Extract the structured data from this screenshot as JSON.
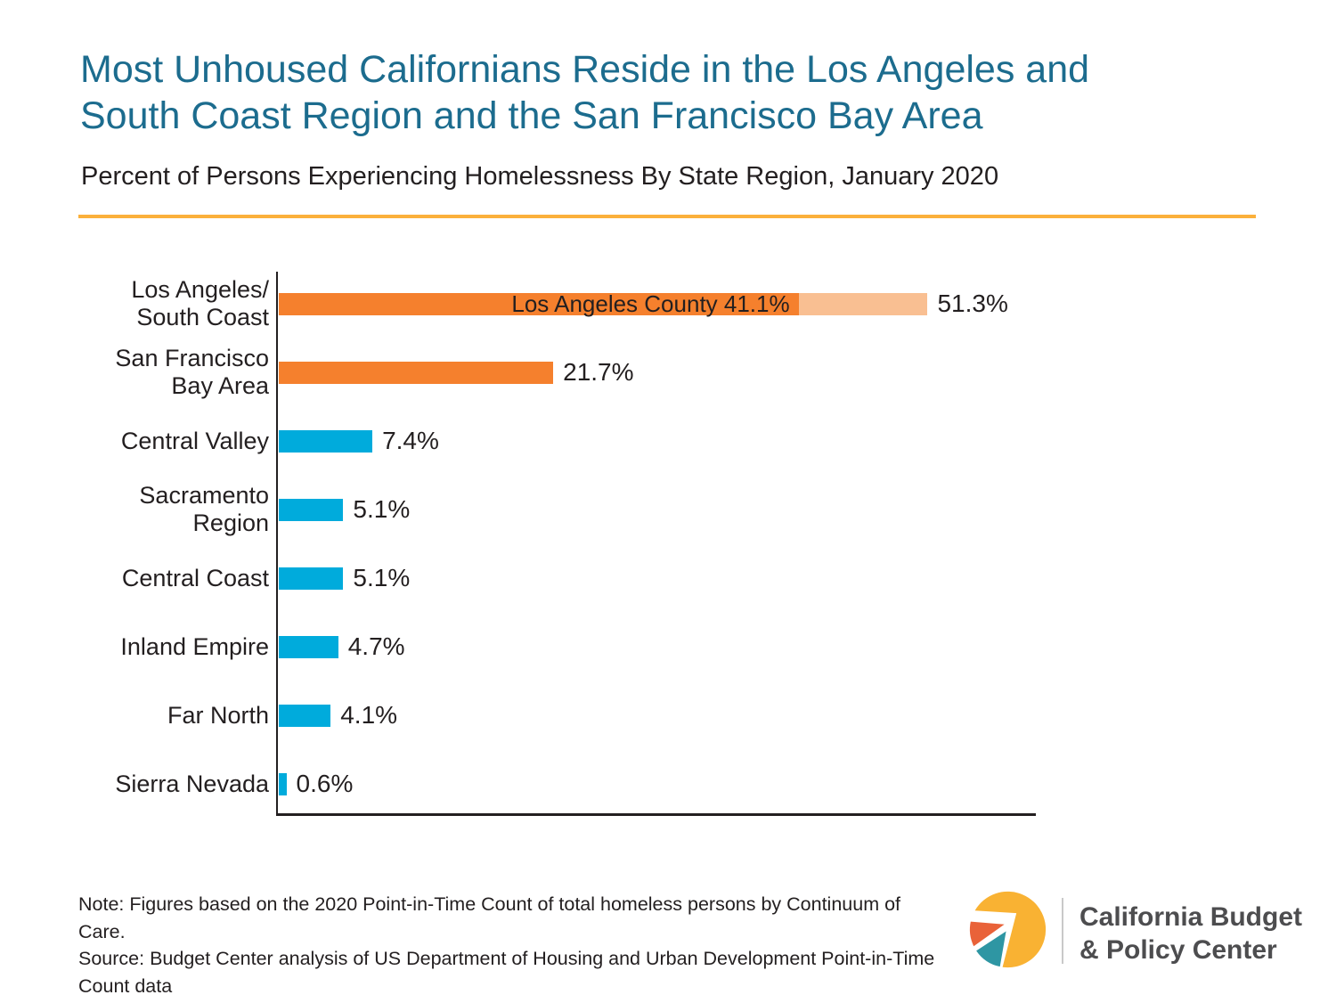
{
  "chart_data": {
    "type": "bar",
    "orientation": "horizontal",
    "title_line1": "Most Unhoused Californians Reside in the Los Angeles and",
    "title_line2": "South Coast Region and the San Francisco Bay Area",
    "subtitle": "Percent of Persons Experiencing Homelessness By State Region, January 2020",
    "unit": "%",
    "xlim": [
      0,
      60
    ],
    "gridlines": false,
    "legend": "none",
    "categories": [
      "Los Angeles/South Coast",
      "San Francisco Bay Area",
      "Central Valley",
      "Sacramento Region",
      "Central Coast",
      "Inland Empire",
      "Far North",
      "Sierra Nevada"
    ],
    "values": [
      51.3,
      21.7,
      7.4,
      5.1,
      5.1,
      4.7,
      4.1,
      0.6
    ],
    "bars": [
      {
        "category": "Los Angeles/South Coast",
        "label_lines": [
          "Los Angeles/",
          "South Coast"
        ],
        "value": 51.3,
        "value_label": "51.3%",
        "segments": [
          {
            "label": "Los Angeles County 41.1%",
            "value": 41.1,
            "color": "#F5802D"
          },
          {
            "label": "",
            "value": 10.2,
            "color": "#F9BF92"
          }
        ]
      },
      {
        "category": "San Francisco Bay Area",
        "label_lines": [
          "San Francisco",
          "Bay Area"
        ],
        "value": 21.7,
        "value_label": "21.7%",
        "color": "#F5802D"
      },
      {
        "category": "Central Valley",
        "label_lines": [
          "Central Valley"
        ],
        "value": 7.4,
        "value_label": "7.4%",
        "color": "#00ABDC"
      },
      {
        "category": "Sacramento Region",
        "label_lines": [
          "Sacramento",
          "Region"
        ],
        "value": 5.1,
        "value_label": "5.1%",
        "color": "#00ABDC"
      },
      {
        "category": "Central Coast",
        "label_lines": [
          "Central Coast"
        ],
        "value": 5.1,
        "value_label": "5.1%",
        "color": "#00ABDC"
      },
      {
        "category": "Inland Empire",
        "label_lines": [
          "Inland Empire"
        ],
        "value": 4.7,
        "value_label": "4.7%",
        "color": "#00ABDC"
      },
      {
        "category": "Far North",
        "label_lines": [
          "Far North"
        ],
        "value": 4.1,
        "value_label": "4.1%",
        "color": "#00ABDC"
      },
      {
        "category": "Sierra Nevada",
        "label_lines": [
          "Sierra Nevada"
        ],
        "value": 0.6,
        "value_label": "0.6%",
        "color": "#00ABDC"
      }
    ]
  },
  "colors": {
    "title": "#1C6C8E",
    "rule": "#FBB03B",
    "text": "#231F20",
    "axis": "#231F20",
    "bar_orange": "#F5802D",
    "bar_orange_light": "#F9BF92",
    "bar_blue": "#00ABDC"
  },
  "footer": {
    "note_lines": [
      "Note: Figures based on the 2020 Point-in-Time Count of total homeless persons by Continuum of",
      "Care.",
      "Source: Budget Center analysis of US Department of Housing and Urban Development Point-in-Time",
      "Count data"
    ],
    "logo": {
      "org_line1": "California Budget",
      "org_line2": "& Policy Center",
      "colors": {
        "gold": "#F9B233",
        "orange": "#E96239",
        "teal": "#2E96A3",
        "text": "#4D4D4F",
        "divider": "#C9C9C9"
      }
    }
  }
}
